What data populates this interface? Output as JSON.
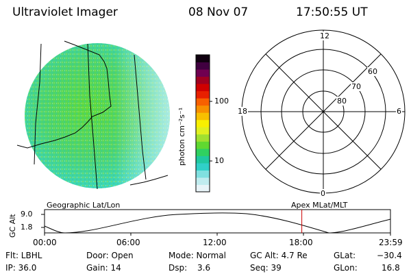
{
  "header": {
    "title": "Ultraviolet Imager",
    "date": "08 Nov 07",
    "time": "17:50:55 UT"
  },
  "colorbar": {
    "label": "photon cm⁻²s⁻¹",
    "ticks": [
      "100",
      "10"
    ],
    "colors": [
      "#e8f4f8",
      "#c0ecef",
      "#80e0e0",
      "#30d0c8",
      "#20c8a0",
      "#30d060",
      "#60d830",
      "#a0e030",
      "#e0f020",
      "#f8f000",
      "#f8c000",
      "#f89000",
      "#f86000",
      "#e82000",
      "#d00000",
      "#a00020",
      "#700050",
      "#400040",
      "#100010"
    ]
  },
  "left_panel": {
    "caption": "Geographic Lat/Lon"
  },
  "right_panel": {
    "caption": "Apex MLat/MLT",
    "mlt_labels": {
      "top": "12",
      "left": "18",
      "right": "6",
      "bottom": "0"
    },
    "mlat_labels": [
      "60",
      "70",
      "80"
    ]
  },
  "altitude_plot": {
    "ylabel": "GC Alt",
    "yticks": [
      "9.0",
      "1.8"
    ],
    "xticks": [
      "00:00",
      "06:00",
      "12:00",
      "18:00",
      "23:59"
    ],
    "current_time_marker_hours": 17.85,
    "marker_color": "#cc0000"
  },
  "info": {
    "flt": "Flt: LBHL",
    "ip": "IP: 36.0",
    "door": "Door: Open",
    "gain": "Gain: 14",
    "mode": "Mode: Normal",
    "dsp_label": "Dsp:",
    "dsp_value": "3.6",
    "gcalt": "GC Alt: 4.7 Re",
    "seq": "Seq: 39",
    "glat_label": "GLat:",
    "glat_value": "−30.4",
    "glon_label": "GLon:",
    "glon_value": "16.8"
  }
}
